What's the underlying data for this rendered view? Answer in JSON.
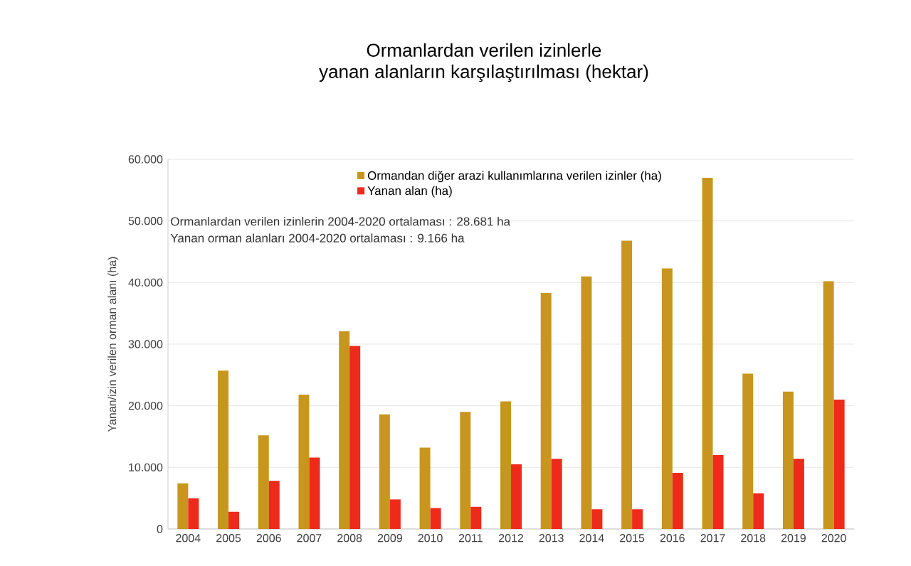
{
  "chart_data": {
    "type": "bar",
    "title": "Ormanlardan verilen izinlerle\nyanan alanların karşılaştırılması (hektar)",
    "ylabel": "Yanan/izin verilen orman alanı (ha)",
    "categories": [
      "2004",
      "2005",
      "2006",
      "2007",
      "2008",
      "2009",
      "2010",
      "2011",
      "2012",
      "2013",
      "2014",
      "2015",
      "2016",
      "2017",
      "2018",
      "2019",
      "2020"
    ],
    "series": [
      {
        "name": "Ormandan diğer arazi kullanımlarına verilen izinler (ha)",
        "color": "#c8961e",
        "values": [
          7400,
          25700,
          15200,
          21800,
          32100,
          18600,
          13200,
          19000,
          20700,
          38300,
          41000,
          46800,
          42300,
          57000,
          25200,
          22300,
          40200
        ]
      },
      {
        "name": "Yanan alan (ha)",
        "color": "#ee2a1b",
        "values": [
          5000,
          2800,
          7800,
          11600,
          29700,
          4800,
          3400,
          3600,
          10500,
          11400,
          3200,
          3200,
          9100,
          12000,
          5800,
          11400,
          21000
        ]
      }
    ],
    "annotations": [
      "Ormanlardan verilen izinlerin 2004-2020 ortalaması  :  28.681 ha",
      "Yanan orman alanları 2004-2020 ortalaması  :    9.166 ha"
    ],
    "ylim": [
      0,
      60000
    ],
    "yticks": [
      {
        "value": 0,
        "label": "0"
      },
      {
        "value": 10000,
        "label": "10.000"
      },
      {
        "value": 20000,
        "label": "20.000"
      },
      {
        "value": 30000,
        "label": "30.000"
      },
      {
        "value": 40000,
        "label": "40.000"
      },
      {
        "value": 50000,
        "label": "50.000"
      },
      {
        "value": 60000,
        "label": "60.000"
      }
    ],
    "grid": "y",
    "legend": "top"
  }
}
